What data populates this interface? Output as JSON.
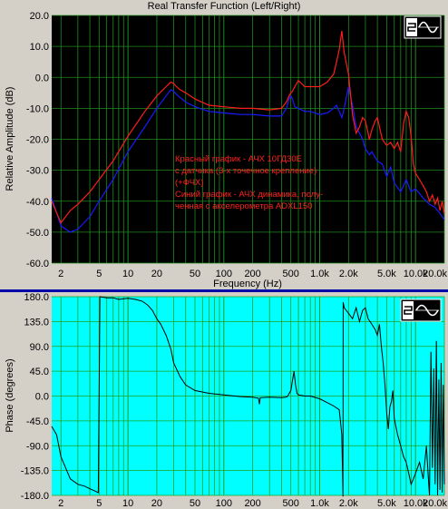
{
  "window": {
    "title": "Real Transfer Function (Left/Right)"
  },
  "colors": {
    "panel_bg": "#d4d0c8",
    "magnitude_bg": "#000000",
    "phase_bg": "#00ffff",
    "grid_top": "#1f8a1f",
    "grid_bottom": "#20a020",
    "red_series": "#ff1c1c",
    "blue_series": "#1a1aff",
    "phase_line": "#000000",
    "divider": "#0000a8"
  },
  "logo_icon": "sine-wave-logo-icon",
  "chart_data": [
    {
      "type": "line",
      "title": "Real Transfer Function (Left/Right)",
      "xlabel": "Frequency (Hz)",
      "ylabel": "Relative Amplitude (dB)",
      "xscale": "log",
      "xlim": [
        1.6,
        20000
      ],
      "ylim": [
        -60,
        20
      ],
      "grid": true,
      "xticks": [
        {
          "v": 2,
          "l": "2"
        },
        {
          "v": 5,
          "l": "5"
        },
        {
          "v": 10,
          "l": "10"
        },
        {
          "v": 20,
          "l": "20"
        },
        {
          "v": 50,
          "l": "50"
        },
        {
          "v": 100,
          "l": "100"
        },
        {
          "v": 200,
          "l": "200"
        },
        {
          "v": 500,
          "l": "500"
        },
        {
          "v": 1000,
          "l": "1.0k"
        },
        {
          "v": 2000,
          "l": "2.0k"
        },
        {
          "v": 5000,
          "l": "5.0k"
        },
        {
          "v": 10000,
          "l": "10.0k"
        },
        {
          "v": 20000,
          "l": "20.0k"
        }
      ],
      "yticks": [
        {
          "v": 20,
          "l": "20.0"
        },
        {
          "v": 10,
          "l": "10.0"
        },
        {
          "v": 0,
          "l": "0.0"
        },
        {
          "v": -10,
          "l": "-10.0"
        },
        {
          "v": -20,
          "l": "-20.0"
        },
        {
          "v": -30,
          "l": "-30.0"
        },
        {
          "v": -40,
          "l": "-40.0"
        },
        {
          "v": -50,
          "l": "-50.0"
        },
        {
          "v": -60,
          "l": "-60.0"
        }
      ],
      "annotations": [
        "Красный график - АЧХ 10ГД30Е",
        "с датчика (3-х точечное крепление)",
        "(+ФЧХ)",
        "Синий график - АЧХ динамика, полу-",
        "ченная с акселерометра ADXL150"
      ],
      "series": [
        {
          "color": "red",
          "x": [
            1.6,
            2,
            2.5,
            3,
            4,
            5,
            7,
            10,
            15,
            20,
            25,
            28,
            30,
            32,
            35,
            40,
            50,
            70,
            100,
            150,
            200,
            300,
            400,
            450,
            480,
            500,
            520,
            550,
            600,
            700,
            800,
            1000,
            1200,
            1400,
            1500,
            1600,
            1700,
            1800,
            2000,
            2200,
            2400,
            2600,
            2800,
            3000,
            3300,
            3500,
            3800,
            4000,
            4500,
            5000,
            5500,
            6000,
            6500,
            7000,
            7500,
            8000,
            8500,
            9000,
            9500,
            10000,
            11000,
            12000,
            13000,
            14000,
            15000,
            16000,
            17000,
            18000,
            19000,
            20000
          ],
          "y": [
            -40,
            -47,
            -43,
            -41,
            -37,
            -33,
            -27,
            -19,
            -11,
            -6,
            -3,
            -1.5,
            -2,
            -3,
            -4,
            -5,
            -7,
            -9,
            -9.5,
            -10,
            -10,
            -10.5,
            -10,
            -8,
            -6,
            -5,
            -4.5,
            -3,
            -1,
            -3,
            -3,
            -3,
            -1.5,
            1,
            5,
            9,
            15,
            8,
            1,
            -12,
            -18,
            -16,
            -13,
            -14,
            -20,
            -17,
            -14,
            -13,
            -20,
            -22,
            -21,
            -23,
            -21,
            -24,
            -15,
            -11,
            -13,
            -19,
            -28,
            -31,
            -33,
            -35,
            -37,
            -40,
            -38,
            -41,
            -39,
            -43,
            -40,
            -44
          ]
        },
        {
          "color": "blue",
          "x": [
            1.6,
            2,
            2.5,
            3,
            4,
            5,
            7,
            10,
            15,
            20,
            25,
            28,
            30,
            32,
            35,
            40,
            50,
            70,
            100,
            150,
            200,
            300,
            400,
            450,
            480,
            500,
            520,
            550,
            600,
            700,
            800,
            1000,
            1200,
            1400,
            1500,
            1600,
            1700,
            1800,
            2000,
            2200,
            2400,
            2600,
            2800,
            3000,
            3300,
            3500,
            4000,
            4500,
            5000,
            5500,
            6000,
            7000,
            8000,
            9000,
            10000,
            12000,
            14000,
            16000,
            18000,
            20000
          ],
          "y": [
            -39,
            -48,
            -50,
            -49,
            -45,
            -40,
            -33,
            -24,
            -16,
            -10,
            -6,
            -4,
            -4.5,
            -5.5,
            -6.5,
            -8,
            -9.5,
            -11,
            -11.5,
            -12,
            -12,
            -12.5,
            -12.5,
            -10,
            -7,
            -6,
            -7,
            -9.5,
            -10,
            -11,
            -11,
            -12,
            -11.5,
            -10,
            -9,
            -11,
            -13,
            -10,
            -3,
            -9,
            -16,
            -18,
            -20,
            -23,
            -25,
            -24,
            -27,
            -28,
            -32,
            -29,
            -34,
            -37,
            -33,
            -37,
            -36,
            -39,
            -41,
            -42,
            -44,
            -46
          ]
        }
      ]
    },
    {
      "type": "line",
      "xlabel": "",
      "ylabel": "Phase (degrees)",
      "xscale": "log",
      "xlim": [
        1.6,
        20000
      ],
      "ylim": [
        -180,
        180
      ],
      "grid": true,
      "xticks": [
        {
          "v": 2,
          "l": "2"
        },
        {
          "v": 5,
          "l": "5"
        },
        {
          "v": 10,
          "l": "10"
        },
        {
          "v": 20,
          "l": "20"
        },
        {
          "v": 50,
          "l": "50"
        },
        {
          "v": 100,
          "l": "100"
        },
        {
          "v": 200,
          "l": "200"
        },
        {
          "v": 500,
          "l": "500"
        },
        {
          "v": 1000,
          "l": "1.0k"
        },
        {
          "v": 2000,
          "l": "2.0k"
        },
        {
          "v": 5000,
          "l": "5.0k"
        },
        {
          "v": 10000,
          "l": "10.0k"
        },
        {
          "v": 20000,
          "l": "20.0k"
        }
      ],
      "yticks": [
        {
          "v": 180,
          "l": "180.0"
        },
        {
          "v": 135,
          "l": "135.0"
        },
        {
          "v": 90,
          "l": "90.0"
        },
        {
          "v": 45,
          "l": "45.0"
        },
        {
          "v": 0,
          "l": "0.0"
        },
        {
          "v": -45,
          "l": "-45.0"
        },
        {
          "v": -90,
          "l": "-90.0"
        },
        {
          "v": -135,
          "l": "-135.0"
        },
        {
          "v": -180,
          "l": "-180.0"
        }
      ],
      "series": [
        {
          "x": [
            1.6,
            1.8,
            2,
            2.5,
            3,
            3.5,
            4,
            4.5,
            4.9,
            5.1,
            6,
            7,
            8,
            10,
            12,
            14,
            16,
            18,
            20,
            22,
            25,
            28,
            30,
            35,
            40,
            50,
            70,
            100,
            150,
            200,
            230,
            235,
            240,
            300,
            400,
            440,
            460,
            500,
            540,
            560,
            580,
            600,
            650,
            700,
            800,
            1000,
            1200,
            1400,
            1600,
            1700,
            1750,
            1760,
            1800,
            2000,
            2200,
            2400,
            2600,
            2800,
            3000,
            3200,
            3500,
            3800,
            4000,
            4200,
            4400,
            4600,
            4800,
            5000,
            5200,
            5400,
            5600,
            5800,
            6000,
            6500,
            7000,
            7500,
            8000,
            8500,
            9000,
            9500,
            10000,
            10500,
            11000,
            11500,
            12000,
            12500,
            13000,
            13500,
            14000,
            14500,
            15000,
            15500,
            16000,
            16500,
            17000,
            17500,
            18000,
            18500,
            19000,
            19500,
            20000
          ],
          "y": [
            -55,
            -70,
            -110,
            -150,
            -160,
            -163,
            -168,
            -172,
            -175,
            180,
            178,
            178,
            175,
            177,
            175,
            172,
            165,
            155,
            140,
            130,
            110,
            85,
            60,
            35,
            20,
            10,
            5,
            2,
            -1,
            -2,
            -4,
            -15,
            -3,
            -2,
            -3,
            -2,
            -1,
            10,
            45,
            20,
            5,
            2,
            1,
            0,
            0,
            -5,
            -12,
            -18,
            -25,
            -70,
            -182,
            170,
            160,
            150,
            140,
            160,
            135,
            155,
            160,
            140,
            130,
            120,
            110,
            130,
            90,
            60,
            20,
            -30,
            -60,
            -20,
            -10,
            10,
            -40,
            -70,
            -90,
            -110,
            -120,
            -140,
            -160,
            -150,
            -140,
            -130,
            -120,
            -135,
            -150,
            -120,
            -90,
            -140,
            -180,
            80,
            -130,
            50,
            -160,
            100,
            -180,
            30,
            -170,
            60,
            -175,
            20,
            -160
          ]
        }
      ]
    }
  ]
}
